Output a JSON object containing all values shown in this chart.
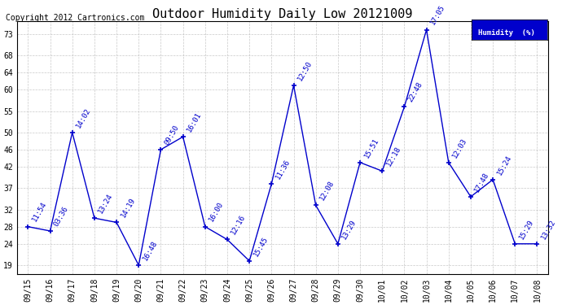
{
  "title": "Outdoor Humidity Daily Low 20121009",
  "copyright": "Copyright 2012 Cartronics.com",
  "background_color": "#ffffff",
  "plot_bg_color": "#ffffff",
  "grid_color": "#bbbbbb",
  "line_color": "#0000cc",
  "marker_color": "#0000cc",
  "text_color": "#0000cc",
  "legend_label": "Humidity  (%)",
  "dates": [
    "09/15",
    "09/16",
    "09/17",
    "09/18",
    "09/19",
    "09/20",
    "09/21",
    "09/22",
    "09/23",
    "09/24",
    "09/25",
    "09/26",
    "09/27",
    "09/28",
    "09/29",
    "09/30",
    "10/01",
    "10/02",
    "10/03",
    "10/04",
    "10/05",
    "10/06",
    "10/07",
    "10/08"
  ],
  "x_indices": [
    0,
    1,
    2,
    3,
    4,
    5,
    6,
    7,
    8,
    9,
    10,
    11,
    12,
    13,
    14,
    15,
    16,
    17,
    18,
    19,
    20,
    21,
    22,
    23
  ],
  "values": [
    28,
    27,
    50,
    30,
    29,
    19,
    46,
    49,
    28,
    25,
    20,
    38,
    61,
    33,
    24,
    43,
    41,
    56,
    74,
    43,
    35,
    39,
    24,
    24
  ],
  "time_labels": [
    "11:54",
    "03:36",
    "14:02",
    "13:24",
    "14:19",
    "16:48",
    "09:50",
    "16:01",
    "16:00",
    "12:16",
    "15:45",
    "11:36",
    "12:50",
    "12:08",
    "13:29",
    "15:51",
    "12:18",
    "22:48",
    "17:05",
    "12:03",
    "17:48",
    "15:24",
    "15:29",
    "13:32"
  ],
  "ylim": [
    17,
    76
  ],
  "yticks": [
    19,
    24,
    28,
    32,
    37,
    42,
    46,
    50,
    55,
    60,
    64,
    68,
    73
  ],
  "title_fontsize": 11,
  "axis_fontsize": 7,
  "label_fontsize": 6.5,
  "copyright_fontsize": 7
}
